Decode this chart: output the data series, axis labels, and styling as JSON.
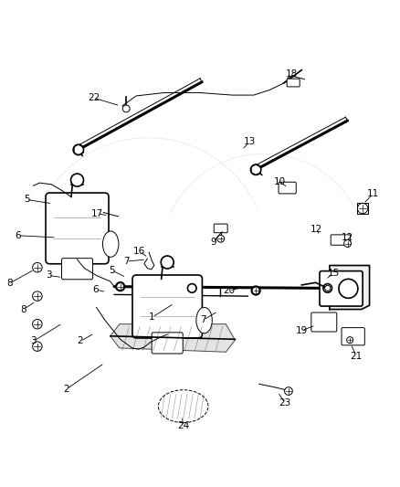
{
  "background_color": "#ffffff",
  "line_color": "#000000",
  "text_color": "#000000",
  "fig_width": 4.38,
  "fig_height": 5.33,
  "dpi": 100,
  "label_data": {
    "1": [
      0.38,
      0.315,
      0.435,
      0.35
    ],
    "2a": [
      0.165,
      0.135,
      0.26,
      0.2
    ],
    "3a": [
      0.082,
      0.255,
      0.155,
      0.3
    ],
    "5a": [
      0.065,
      0.61,
      0.13,
      0.6
    ],
    "6a": [
      0.043,
      0.52,
      0.14,
      0.515
    ],
    "7a": [
      0.315,
      0.455,
      0.365,
      0.46
    ],
    "8a": [
      0.022,
      0.4,
      0.085,
      0.435
    ],
    "9": [
      0.533,
      0.504,
      0.56,
      0.535
    ],
    "10": [
      0.7,
      0.655,
      0.72,
      0.64
    ],
    "11": [
      0.935,
      0.625,
      0.91,
      0.6
    ],
    "12a": [
      0.793,
      0.535,
      0.8,
      0.52
    ],
    "13": [
      0.625,
      0.755,
      0.605,
      0.735
    ],
    "15": [
      0.835,
      0.425,
      0.815,
      0.41
    ],
    "16": [
      0.348,
      0.48,
      0.37,
      0.465
    ],
    "17": [
      0.243,
      0.575,
      0.27,
      0.57
    ],
    "18": [
      0.73,
      0.925,
      0.715,
      0.91
    ],
    "19": [
      0.755,
      0.282,
      0.79,
      0.295
    ],
    "20": [
      0.573,
      0.382,
      0.615,
      0.392
    ],
    "21": [
      0.892,
      0.218,
      0.878,
      0.248
    ],
    "22": [
      0.233,
      0.865,
      0.3,
      0.845
    ],
    "23": [
      0.713,
      0.1,
      0.695,
      0.128
    ],
    "24": [
      0.458,
      0.042,
      0.455,
      0.068
    ]
  },
  "label_data2": {
    "2": [
      0.2,
      0.255,
      0.235,
      0.275
    ],
    "3": [
      0.12,
      0.42,
      0.155,
      0.415
    ],
    "5": [
      0.278,
      0.433,
      0.315,
      0.415
    ],
    "6": [
      0.238,
      0.385,
      0.265,
      0.378
    ],
    "7": [
      0.508,
      0.308,
      0.545,
      0.33
    ],
    "8": [
      0.058,
      0.335,
      0.088,
      0.355
    ],
    "12": [
      0.87,
      0.515,
      0.855,
      0.505
    ]
  },
  "label_display": {
    "1": "1",
    "2a": "2",
    "3a": "3",
    "5a": "5",
    "6a": "6",
    "7a": "7",
    "8a": "8",
    "9": "9",
    "10": "10",
    "11": "11",
    "12a": "12",
    "13": "13",
    "15": "15",
    "16": "16",
    "17": "17",
    "18": "18",
    "19": "19",
    "20": "20",
    "21": "21",
    "22": "22",
    "23": "23",
    "24": "24"
  }
}
